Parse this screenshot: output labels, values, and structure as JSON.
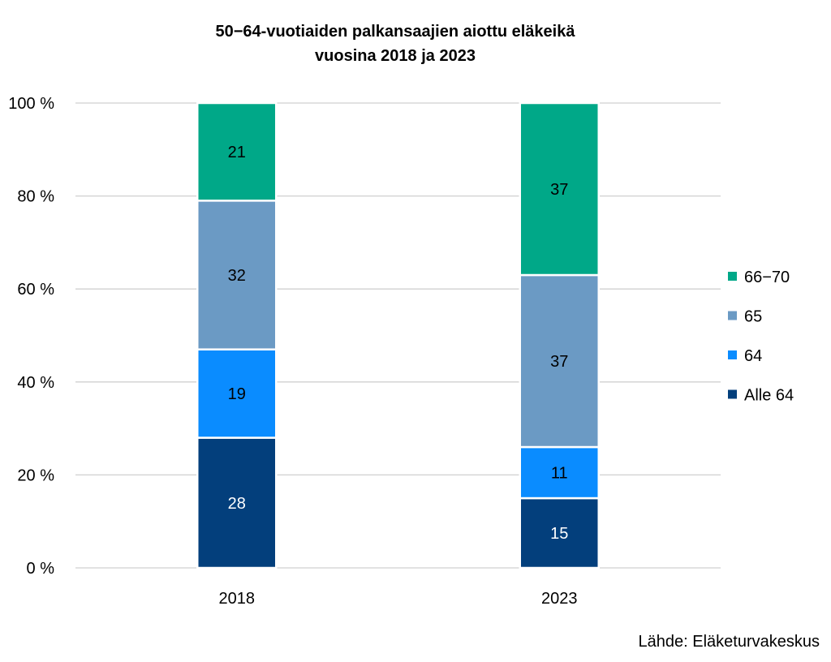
{
  "chart_data": {
    "type": "bar",
    "stacked": true,
    "title_lines": [
      "50−64-vuotiaiden palkansaajien aiottu eläkeikä",
      "vuosina 2018 ja 2023"
    ],
    "xlabel": "",
    "ylabel": "",
    "categories": [
      "2018",
      "2023"
    ],
    "ylim": [
      0,
      100
    ],
    "yticks": [
      0,
      20,
      40,
      60,
      80,
      100
    ],
    "ytick_labels": [
      "0 %",
      "20 %",
      "40 %",
      "60 %",
      "80 %",
      "100 %"
    ],
    "grid": true,
    "legend_position": "right",
    "series": [
      {
        "name": "Alle 64",
        "values": [
          28,
          15
        ],
        "color": "#033F7C",
        "label_color": "#ffffff"
      },
      {
        "name": "64",
        "values": [
          19,
          11
        ],
        "color": "#0A8CFF",
        "label_color": "#000000"
      },
      {
        "name": "65",
        "values": [
          32,
          37
        ],
        "color": "#6B9AC4",
        "label_color": "#000000"
      },
      {
        "name": "66−70",
        "values": [
          21,
          37
        ],
        "color": "#00A888",
        "label_color": "#000000"
      }
    ],
    "source": "Lähde: Eläketurvakeskus"
  }
}
